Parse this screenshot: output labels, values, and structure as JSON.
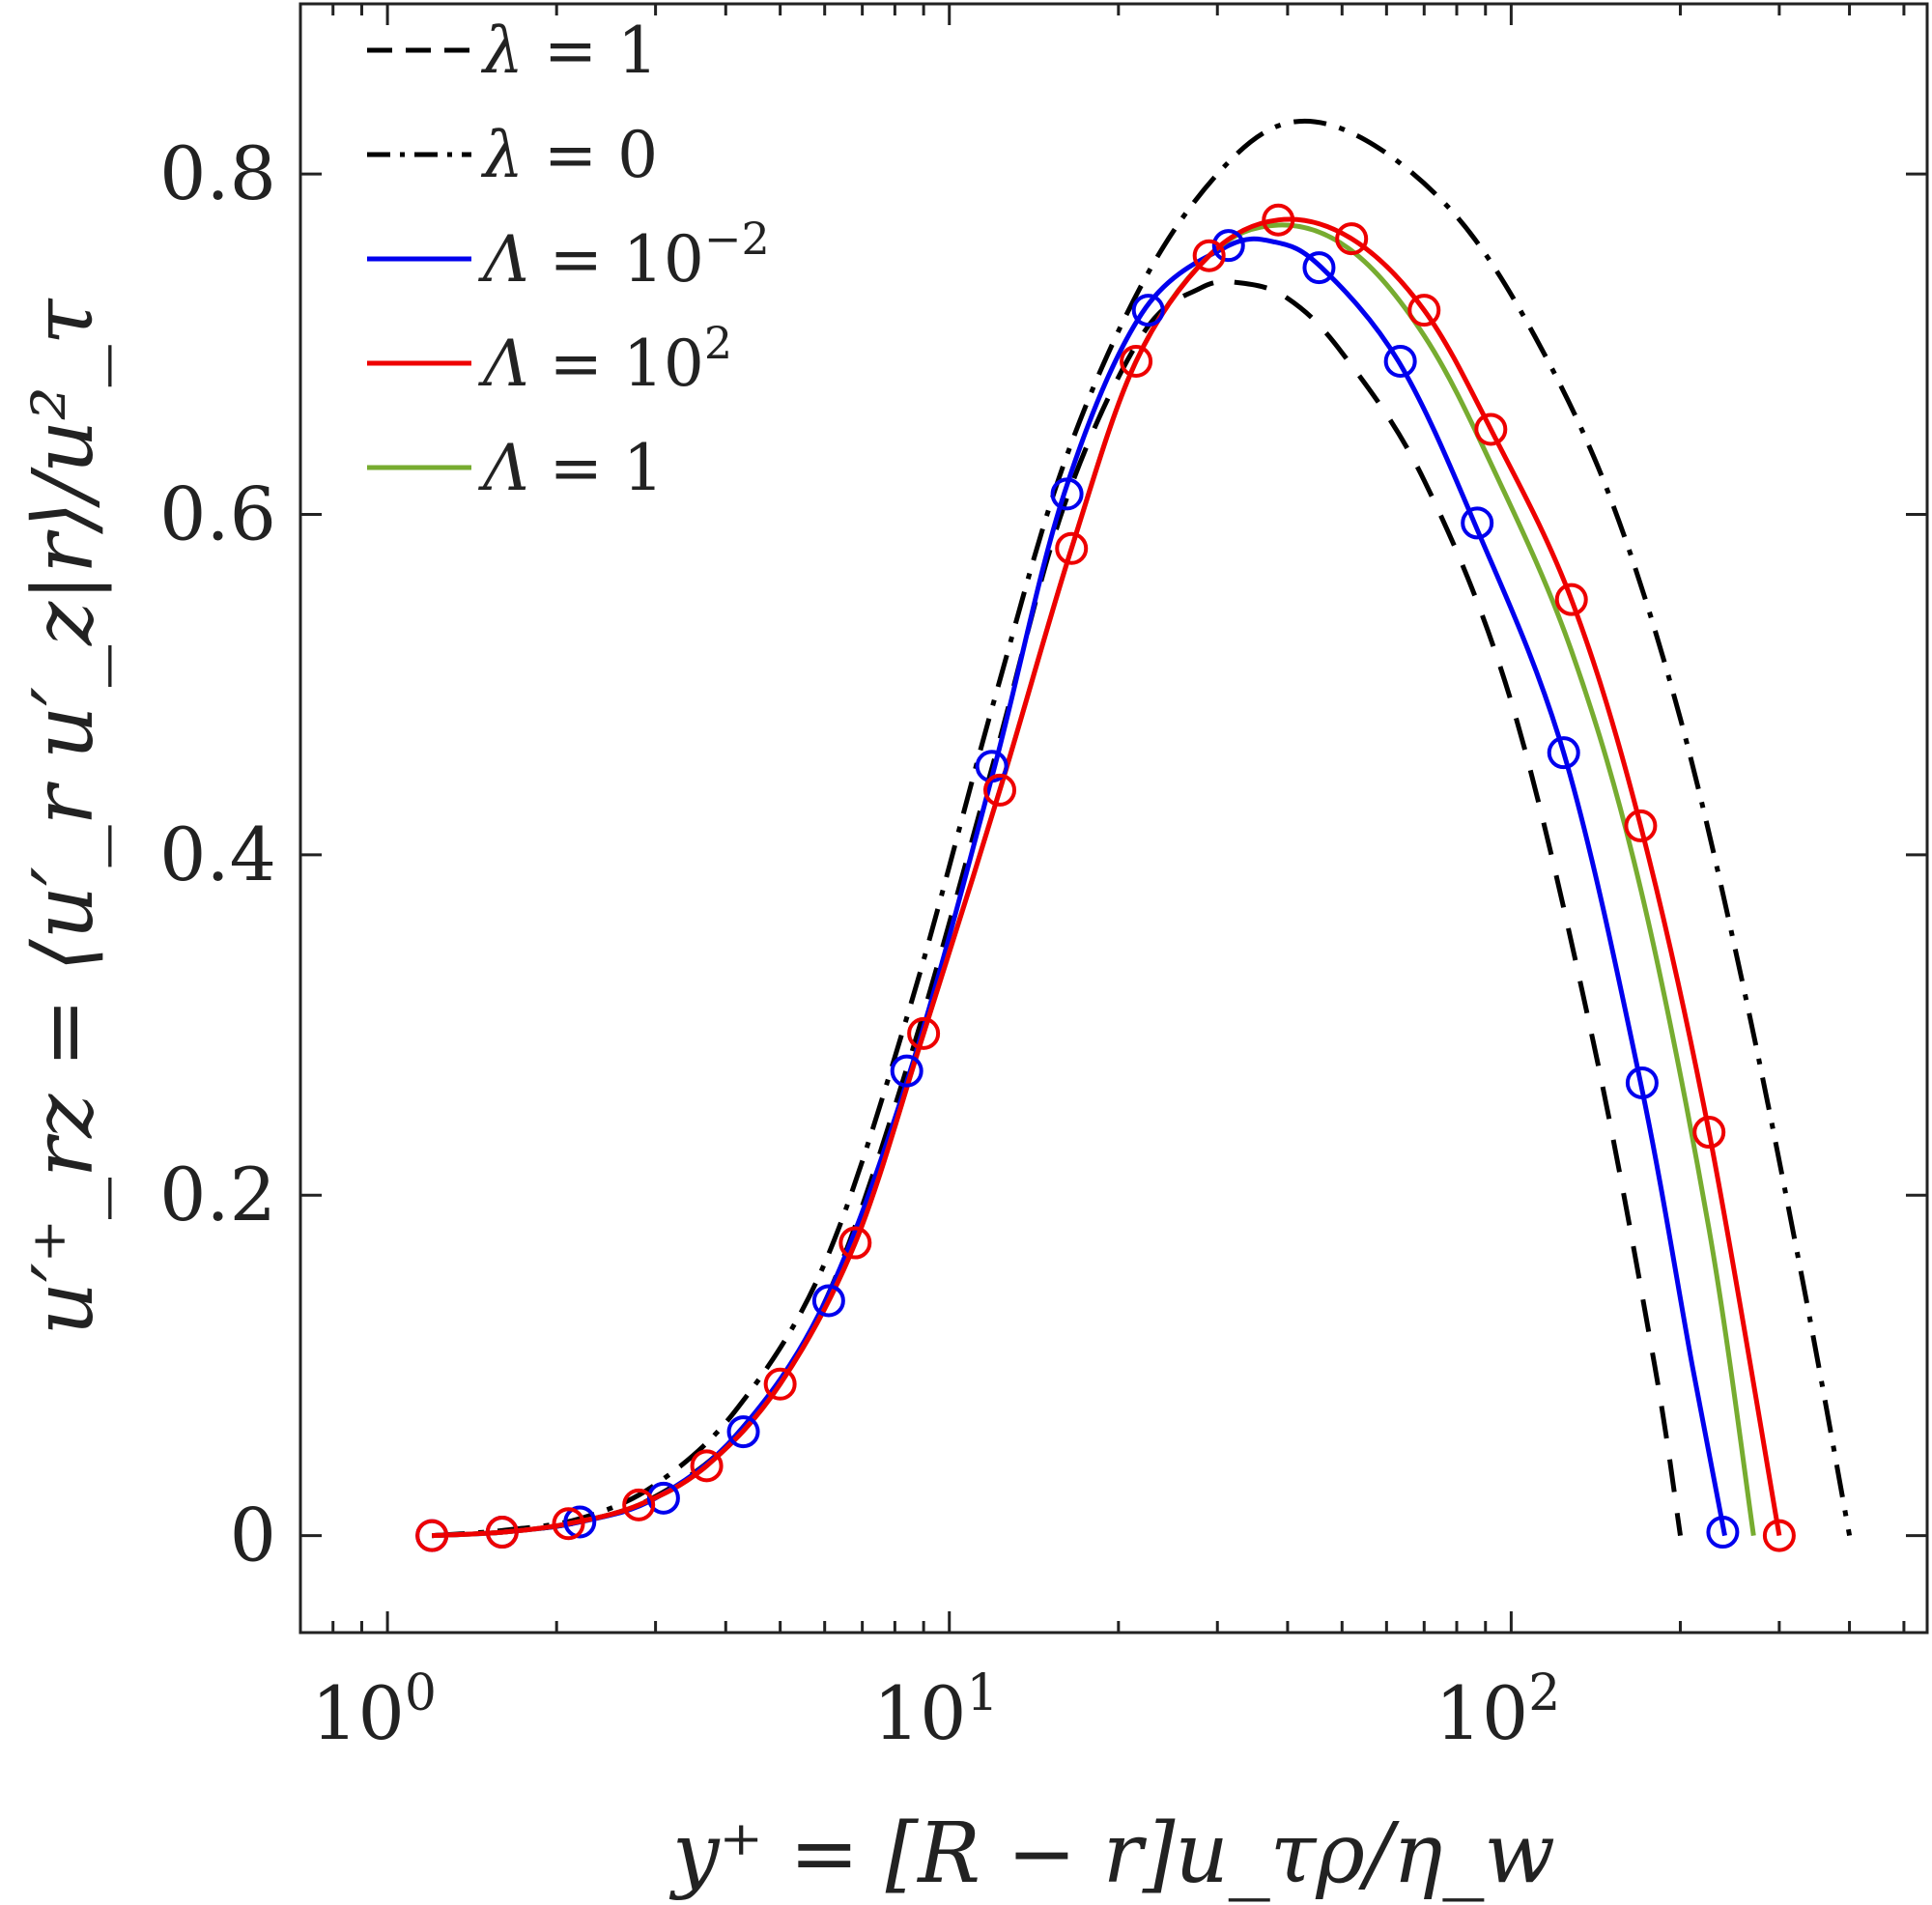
{
  "chart_data": {
    "type": "line",
    "title": "",
    "xscale": "log",
    "xlim": [
      0.7,
      550
    ],
    "ylim": [
      -0.057,
      0.9
    ],
    "xlabel": "y⁺ = [R − r]u_τρ/η_w",
    "ylabel": "u′⁺_rz = ⟨u′_r u′_z|r⟩/u²_τ",
    "x_ticks": [
      {
        "value": 1,
        "base": "10",
        "exp": "0"
      },
      {
        "value": 10,
        "base": "10",
        "exp": "1"
      },
      {
        "value": 100,
        "base": "10",
        "exp": "2"
      }
    ],
    "y_ticks": [
      {
        "value": 0,
        "label": "0"
      },
      {
        "value": 0.2,
        "label": "0.2"
      },
      {
        "value": 0.4,
        "label": "0.4"
      },
      {
        "value": 0.6,
        "label": "0.6"
      },
      {
        "value": 0.8,
        "label": "0.8"
      }
    ],
    "legend": {
      "location": "top-left",
      "entries": [
        {
          "sym": "λ",
          "rhs": "= 1",
          "sup": "",
          "color": "#000000",
          "style": "dashed"
        },
        {
          "sym": "λ",
          "rhs": "= 0",
          "sup": "",
          "color": "#000000",
          "style": "dashdot"
        },
        {
          "sym": "Λ",
          "rhs": "= 10",
          "sup": "−2",
          "color": "#0000ee",
          "style": "solid"
        },
        {
          "sym": "Λ",
          "rhs": "= 10",
          "sup": "2",
          "color": "#ee0000",
          "style": "solid"
        },
        {
          "sym": "Λ",
          "rhs": "= 1",
          "sup": "",
          "color": "#77ac30",
          "style": "solid"
        }
      ]
    },
    "series": [
      {
        "name": "λ = 1",
        "color": "#000000",
        "style": "dashed",
        "x": [
          1.2,
          1.6,
          2.2,
          3.0,
          4.2,
          6.0,
          8.5,
          12,
          16,
          22,
          28,
          33,
          40,
          50,
          70,
          100,
          140,
          180,
          200
        ],
        "y": [
          0.0,
          0.002,
          0.008,
          0.023,
          0.06,
          0.137,
          0.28,
          0.455,
          0.605,
          0.705,
          0.733,
          0.736,
          0.727,
          0.695,
          0.62,
          0.49,
          0.29,
          0.1,
          0.0
        ]
      },
      {
        "name": "λ = 0",
        "color": "#000000",
        "style": "dashdot",
        "x": [
          1.2,
          1.6,
          2.2,
          3.0,
          4.2,
          6.0,
          8.5,
          12,
          16,
          22,
          30,
          40,
          55,
          80,
          110,
          150,
          200,
          260,
          330,
          400
        ],
        "y": [
          0.0,
          0.003,
          0.01,
          0.03,
          0.075,
          0.16,
          0.31,
          0.49,
          0.63,
          0.735,
          0.8,
          0.83,
          0.82,
          0.775,
          0.705,
          0.61,
          0.48,
          0.32,
          0.15,
          0.0
        ]
      },
      {
        "name": "Λ = 10⁻²",
        "color": "#0000ee",
        "style": "solid",
        "x": [
          1.2,
          1.6,
          2.2,
          3.0,
          4.2,
          6.0,
          8.5,
          12,
          16,
          22,
          31,
          38,
          46,
          63,
          86,
          124,
          170,
          210,
          240
        ],
        "y": [
          0.0,
          0.002,
          0.008,
          0.022,
          0.06,
          0.137,
          0.272,
          0.45,
          0.612,
          0.718,
          0.757,
          0.76,
          0.745,
          0.69,
          0.595,
          0.46,
          0.266,
          0.1,
          0.0
        ]
      },
      {
        "name": "Λ = 10²",
        "color": "#ee0000",
        "style": "solid",
        "x": [
          1.2,
          1.6,
          2.1,
          2.8,
          3.7,
          5.0,
          6.8,
          9.0,
          12.3,
          16.5,
          21.5,
          29,
          38.5,
          52,
          70,
          92,
          128,
          170,
          225,
          300
        ],
        "y": [
          0.0,
          0.002,
          0.007,
          0.018,
          0.041,
          0.089,
          0.172,
          0.295,
          0.438,
          0.58,
          0.69,
          0.752,
          0.773,
          0.762,
          0.72,
          0.65,
          0.55,
          0.417,
          0.237,
          0.0
        ]
      },
      {
        "name": "Λ = 1",
        "color": "#77ac30",
        "style": "solid",
        "x": [
          1.2,
          1.6,
          2.1,
          2.8,
          3.7,
          5.0,
          6.8,
          9.0,
          12.3,
          16.5,
          21.5,
          29,
          38.5,
          52,
          70,
          92,
          128,
          170,
          225,
          270
        ],
        "y": [
          0.0,
          0.002,
          0.007,
          0.018,
          0.041,
          0.089,
          0.172,
          0.295,
          0.438,
          0.58,
          0.69,
          0.752,
          0.77,
          0.755,
          0.705,
          0.63,
          0.52,
          0.38,
          0.18,
          0.0
        ]
      }
    ],
    "markers": [
      {
        "series": "Λ = 10⁻²",
        "color": "#0000ee",
        "x": [
          1.2,
          1.6,
          2.2,
          3.1,
          4.3,
          6.1,
          8.4,
          11.9,
          16.2,
          22.6,
          31.4,
          45.5,
          63.5,
          87,
          124,
          171,
          238
        ],
        "y": [
          0.0,
          0.002,
          0.008,
          0.022,
          0.061,
          0.138,
          0.273,
          0.452,
          0.612,
          0.72,
          0.758,
          0.745,
          0.69,
          0.595,
          0.46,
          0.266,
          0.002
        ]
      },
      {
        "series": "Λ = 10²",
        "color": "#ee0000",
        "x": [
          1.2,
          1.6,
          2.1,
          2.8,
          3.7,
          5.0,
          6.8,
          9.0,
          12.3,
          16.5,
          21.5,
          29,
          38.5,
          52,
          70,
          92,
          128,
          170,
          225,
          300
        ],
        "y": [
          0.0,
          0.002,
          0.007,
          0.018,
          0.041,
          0.089,
          0.172,
          0.295,
          0.438,
          0.58,
          0.69,
          0.752,
          0.773,
          0.762,
          0.72,
          0.65,
          0.55,
          0.417,
          0.237,
          0.0
        ]
      }
    ]
  }
}
